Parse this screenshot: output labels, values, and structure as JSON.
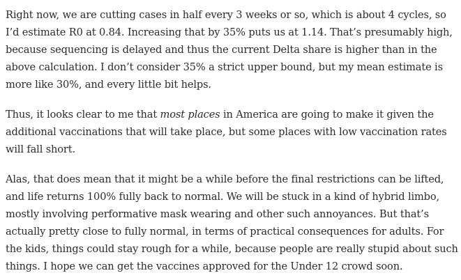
{
  "article": {
    "paragraphs": [
      {
        "text": "Right now, we are cutting cases in half every 3 weeks or so, which is about 4 cycles, so I’d estimate R0 at 0.84. Increasing that by 35% puts us at 1.14. That’s presumably high, because sequencing is delayed and thus the current Delta share is higher than in the above calculation. I don’t consider 35% a strict upper bound, but my mean estimate is more like 30%, and every little bit helps."
      },
      {
        "before": "Thus, it looks clear to me that ",
        "emphasis": "most places",
        "after": " in America are going to make it given the additional vaccinations that will take place, but some places with low vaccination rates will fall short."
      },
      {
        "text": "Alas, that does mean that it might be a while before the final restrictions can be lifted, and life returns 100% fully back to normal. We will be stuck in a kind of hybrid limbo, mostly involving performative mask wearing and other such annoyances. But that’s actually pretty close to fully normal, in terms of practical consequences for adults. For the kids, things could stay rough for a while, because people are really stupid about such things. I hope we can get the vaccines approved for the Under 12 crowd soon."
      }
    ]
  }
}
